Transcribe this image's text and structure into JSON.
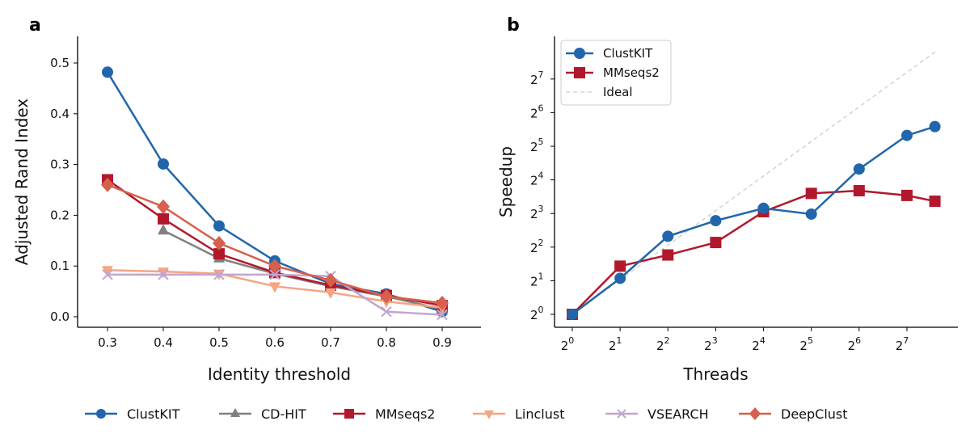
{
  "chart_data": [
    {
      "panel": "a",
      "type": "line",
      "xlabel": "Identity threshold",
      "ylabel": "Adjusted Rand Index",
      "x": [
        0.3,
        0.4,
        0.5,
        0.6,
        0.7,
        0.8,
        0.9
      ],
      "xticks": [
        "0.3",
        "0.4",
        "0.5",
        "0.6",
        "0.7",
        "0.8",
        "0.9"
      ],
      "yticks": [
        "0.0",
        "0.1",
        "0.2",
        "0.3",
        "0.4",
        "0.5"
      ],
      "xlim": [
        0.25,
        0.95
      ],
      "ylim": [
        -0.02,
        0.55
      ],
      "grid": false,
      "series": [
        {
          "name": "ClustKIT",
          "color": "#2166ac",
          "marker": "circle",
          "values": [
            0.482,
            0.301,
            0.179,
            0.11,
            0.065,
            0.045,
            0.01
          ]
        },
        {
          "name": "CD-HIT",
          "color": "#808080",
          "marker": "triangle-up",
          "values": [
            null,
            0.17,
            0.115,
            0.085,
            0.06,
            0.04,
            0.015
          ]
        },
        {
          "name": "MMseqs2",
          "color": "#b2182b",
          "marker": "square",
          "values": [
            0.27,
            0.193,
            0.124,
            0.087,
            0.062,
            0.042,
            0.022
          ]
        },
        {
          "name": "Linclust",
          "color": "#f4a582",
          "marker": "triangle-down",
          "values": [
            0.092,
            0.089,
            0.085,
            0.06,
            0.048,
            0.03,
            0.018
          ]
        },
        {
          "name": "VSEARCH",
          "color": "#c2a5cf",
          "marker": "x",
          "values": [
            0.083,
            0.083,
            0.083,
            0.083,
            0.08,
            0.01,
            0.004
          ]
        },
        {
          "name": "DeepClust",
          "color": "#d6604d",
          "marker": "diamond",
          "values": [
            0.26,
            0.217,
            0.145,
            0.1,
            0.072,
            0.04,
            0.027
          ]
        }
      ]
    },
    {
      "panel": "b",
      "type": "line",
      "xlabel": "Threads",
      "ylabel": "Speedup",
      "xscale": "log2",
      "yscale": "log2",
      "x": [
        1,
        2,
        4,
        8,
        16,
        32,
        64,
        128,
        192
      ],
      "xticks": [
        "0",
        "1",
        "2",
        "3",
        "4",
        "5",
        "6",
        "7"
      ],
      "yticks": [
        "0",
        "1",
        "2",
        "3",
        "4",
        "5",
        "6",
        "7"
      ],
      "tick_base": "2",
      "legend": "top-left",
      "grid": false,
      "series": [
        {
          "name": "ClustKIT",
          "color": "#2166ac",
          "marker": "circle",
          "values": [
            1,
            2.1,
            5.0,
            6.9,
            8.9,
            7.9,
            20,
            40,
            48
          ]
        },
        {
          "name": "MMseqs2",
          "color": "#b2182b",
          "marker": "square",
          "values": [
            1,
            2.7,
            3.4,
            4.4,
            8.3,
            12.1,
            12.8,
            11.6,
            10.3
          ]
        },
        {
          "name": "Ideal",
          "color": "#cccccc",
          "marker": "none",
          "dashed": true,
          "values": [
            1,
            2,
            4,
            8,
            16,
            32,
            64,
            128,
            192
          ]
        }
      ]
    }
  ],
  "legend_labels": [
    "ClustKIT",
    "CD-HIT",
    "MMseqs2",
    "Linclust",
    "VSEARCH",
    "DeepClust"
  ]
}
